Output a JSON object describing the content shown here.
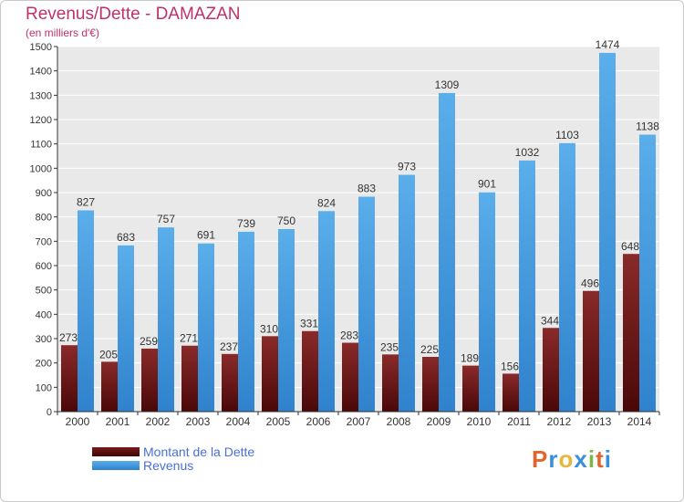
{
  "chart_data": {
    "type": "bar",
    "title": "Revenus/Dette - DAMAZAN",
    "subtitle": "(en milliers d'€)",
    "categories": [
      "2000",
      "2001",
      "2002",
      "2003",
      "2004",
      "2005",
      "2006",
      "2007",
      "2008",
      "2009",
      "2010",
      "2011",
      "2012",
      "2013",
      "2014"
    ],
    "series": [
      {
        "name": "Montant de la Dette",
        "color": "#7a1c1c",
        "values": [
          273,
          205,
          259,
          271,
          237,
          310,
          331,
          283,
          235,
          225,
          189,
          156,
          344,
          496,
          648
        ]
      },
      {
        "name": "Revenus",
        "color": "#4a9fe0",
        "values": [
          827,
          683,
          757,
          691,
          739,
          750,
          824,
          883,
          973,
          1309,
          901,
          1032,
          1103,
          1474,
          1138
        ]
      }
    ],
    "ylim": [
      0,
      1500
    ],
    "yticks": [
      0,
      100,
      200,
      300,
      400,
      500,
      600,
      700,
      800,
      900,
      1000,
      1100,
      1200,
      1300,
      1400,
      1500
    ],
    "grid": true,
    "legend_position": "bottom-left"
  },
  "legend": {
    "dette_label": "Montant de la Dette",
    "revenus_label": "Revenus"
  },
  "logo": {
    "letters": [
      "P",
      "r",
      "o",
      "x",
      "i",
      "t",
      "i"
    ],
    "colors": [
      "#e0662d",
      "#3a8fd8",
      "#e3b83c",
      "#3a8fd8",
      "#7bb84a",
      "#e0662d",
      "#3a8fd8"
    ]
  }
}
